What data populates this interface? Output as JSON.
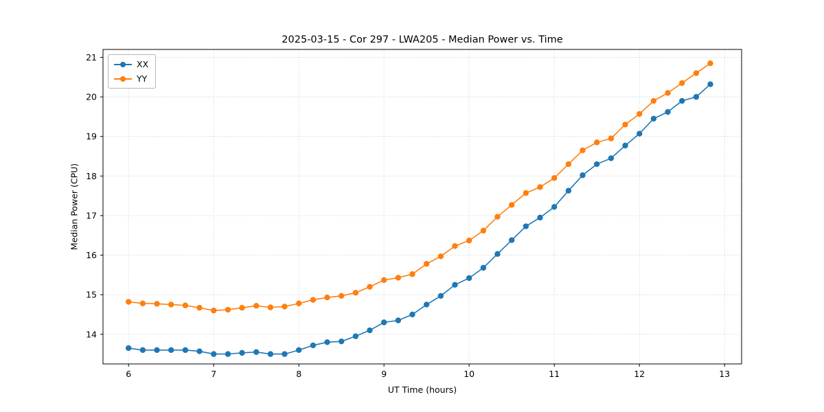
{
  "chart_data": {
    "type": "line",
    "title": "2025-03-15 - Cor 297 - LWA205 - Median Power vs. Time",
    "xlabel": "UT Time (hours)",
    "ylabel": "Median Power (CPU)",
    "xlim": [
      5.7,
      13.2
    ],
    "ylim": [
      13.25,
      21.2
    ],
    "xticks": [
      6,
      7,
      8,
      9,
      10,
      11,
      12,
      13
    ],
    "yticks": [
      14,
      15,
      16,
      17,
      18,
      19,
      20,
      21
    ],
    "grid": true,
    "legend_position": "upper left",
    "x": [
      6.0,
      6.167,
      6.333,
      6.5,
      6.667,
      6.833,
      7.0,
      7.167,
      7.333,
      7.5,
      7.667,
      7.833,
      8.0,
      8.167,
      8.333,
      8.5,
      8.667,
      8.833,
      9.0,
      9.167,
      9.333,
      9.5,
      9.667,
      9.833,
      10.0,
      10.167,
      10.333,
      10.5,
      10.667,
      10.833,
      11.0,
      11.167,
      11.333,
      11.5,
      11.667,
      11.833,
      12.0,
      12.167,
      12.333,
      12.5,
      12.667,
      12.833
    ],
    "series": [
      {
        "name": "XX",
        "color": "#1f77b4",
        "values": [
          13.65,
          13.6,
          13.6,
          13.6,
          13.6,
          13.57,
          13.5,
          13.5,
          13.53,
          13.55,
          13.5,
          13.5,
          13.6,
          13.72,
          13.8,
          13.82,
          13.95,
          14.1,
          14.3,
          14.35,
          14.5,
          14.75,
          14.97,
          15.25,
          15.42,
          15.68,
          16.03,
          16.38,
          16.73,
          16.95,
          17.22,
          17.63,
          18.02,
          18.3,
          18.45,
          18.77,
          19.07,
          19.45,
          19.62,
          19.9,
          20.0,
          20.32
        ]
      },
      {
        "name": "YY",
        "color": "#ff7f0e",
        "values": [
          14.82,
          14.78,
          14.77,
          14.75,
          14.73,
          14.67,
          14.6,
          14.62,
          14.67,
          14.72,
          14.68,
          14.7,
          14.78,
          14.87,
          14.93,
          14.97,
          15.05,
          15.2,
          15.37,
          15.43,
          15.52,
          15.78,
          15.97,
          16.23,
          16.37,
          16.62,
          16.97,
          17.27,
          17.57,
          17.72,
          17.95,
          18.3,
          18.65,
          18.85,
          18.95,
          19.3,
          19.57,
          19.9,
          20.1,
          20.35,
          20.6,
          20.85
        ]
      }
    ]
  }
}
